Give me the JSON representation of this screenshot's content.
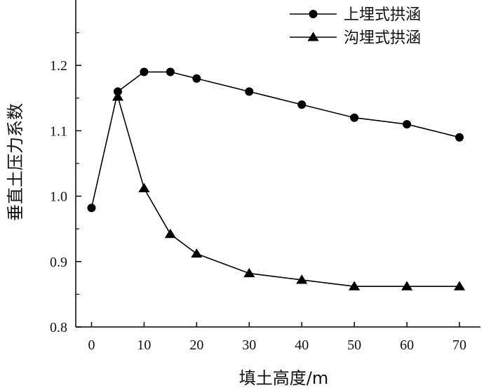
{
  "chart_data": {
    "type": "line",
    "xlabel": "填土高度/m",
    "ylabel": "垂直土压力系数",
    "xlim": [
      -3,
      74
    ],
    "ylim": [
      0.8,
      1.3
    ],
    "xticks": [
      0,
      10,
      20,
      30,
      40,
      50,
      60,
      70
    ],
    "yticks": [
      0.8,
      0.9,
      1.0,
      1.1,
      1.2
    ],
    "xtick_labels": [
      "0",
      "10",
      "20",
      "30",
      "40",
      "50",
      "60",
      "70"
    ],
    "ytick_labels": [
      "0.8",
      "0.9",
      "1.0",
      "1.1",
      "1.2"
    ],
    "legend_position": "top-right",
    "grid": false,
    "series": [
      {
        "name": "上埋式拱涵",
        "marker": "circle",
        "color": "#000000",
        "x": [
          0,
          5,
          10,
          15,
          20,
          30,
          40,
          50,
          60,
          70
        ],
        "y": [
          0.982,
          1.16,
          1.19,
          1.19,
          1.18,
          1.16,
          1.14,
          1.12,
          1.11,
          1.09
        ]
      },
      {
        "name": "沟埋式拱涵",
        "marker": "triangle",
        "color": "#000000",
        "x": [
          5,
          10,
          15,
          20,
          30,
          40,
          50,
          60,
          70
        ],
        "y": [
          1.152,
          1.012,
          0.942,
          0.912,
          0.882,
          0.872,
          0.862,
          0.862,
          0.862
        ]
      }
    ]
  }
}
